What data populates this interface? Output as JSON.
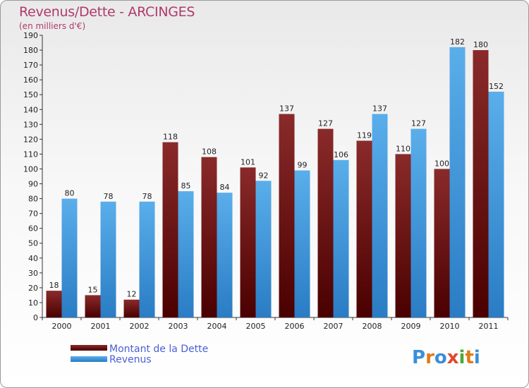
{
  "title": "Revenus/Dette - ARCINGES",
  "subtitle": "(en milliers d'€)",
  "brand": "Proxiti",
  "colors": {
    "debt_top": "#8a2a2a",
    "debt_bottom": "#4a0000",
    "revenue_top": "#5aaeea",
    "revenue_bottom": "#2a7cc4",
    "title": "#b03a6a",
    "legend_text": "#4a5fd6"
  },
  "chart_data": {
    "type": "bar",
    "title": "Revenus/Dette - ARCINGES",
    "subtitle": "(en milliers d'€)",
    "categories": [
      "2000",
      "2001",
      "2002",
      "2003",
      "2004",
      "2005",
      "2006",
      "2007",
      "2008",
      "2009",
      "2010",
      "2011"
    ],
    "series": [
      {
        "name": "Montant de la Dette",
        "values": [
          18,
          15,
          12,
          118,
          108,
          101,
          137,
          127,
          119,
          110,
          100,
          180
        ]
      },
      {
        "name": "Revenus",
        "values": [
          80,
          78,
          78,
          85,
          84,
          92,
          99,
          106,
          137,
          127,
          182,
          152
        ]
      }
    ],
    "ylim": [
      0,
      190
    ],
    "ytick_step": 10,
    "grid": false,
    "legend_position": "bottom-left",
    "data_labels": true
  }
}
